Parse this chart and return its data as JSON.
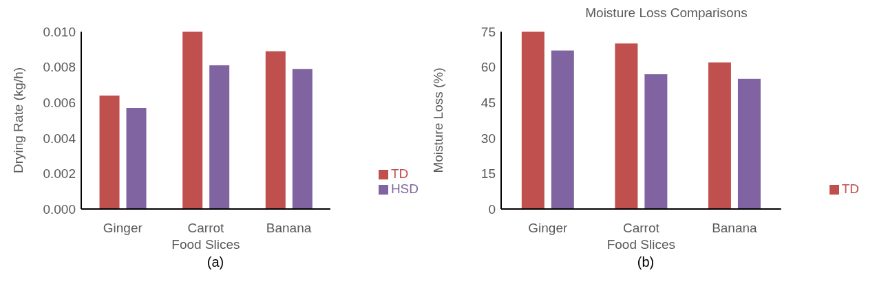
{
  "chart_data": [
    {
      "type": "bar",
      "ylabel": "Drying Rate (kg/h)",
      "categories": [
        "Ginger",
        "Carrot Food Slices",
        "Banana"
      ],
      "series": [
        {
          "name": "TD",
          "color": "#c0504d",
          "values": [
            0.0064,
            0.01,
            0.0089
          ]
        },
        {
          "name": "HSD",
          "color": "#8064a2",
          "values": [
            0.0057,
            0.0081,
            0.0079
          ]
        }
      ],
      "ylim": [
        0,
        0.01
      ],
      "yticks": [
        {
          "value": 0,
          "label": "0.000"
        },
        {
          "value": 0.002,
          "label": "0.002"
        },
        {
          "value": 0.004,
          "label": "0.004"
        },
        {
          "value": 0.006,
          "label": "0.006"
        },
        {
          "value": 0.008,
          "label": "0.008"
        },
        {
          "value": 0.01,
          "label": "0.010"
        }
      ],
      "grid": false,
      "legend": "bottom right",
      "annotations": [
        "(a)"
      ]
    },
    {
      "type": "bar",
      "title": "Moisture Loss Comparisons",
      "ylabel": "Moisture Loss (%)",
      "categories": [
        "Ginger",
        "Carrot Food Slices",
        "Banana"
      ],
      "series": [
        {
          "name": "TD",
          "color": "#c0504d",
          "values": [
            75,
            70,
            62
          ]
        },
        {
          "color": "#8064a2",
          "values": [
            67,
            57,
            55
          ]
        }
      ],
      "ylim": [
        0,
        75
      ],
      "yticks": [
        0,
        15,
        30,
        45,
        60,
        75
      ],
      "grid": false,
      "legend": "bottom right",
      "annotations": [
        "(b)"
      ]
    }
  ]
}
